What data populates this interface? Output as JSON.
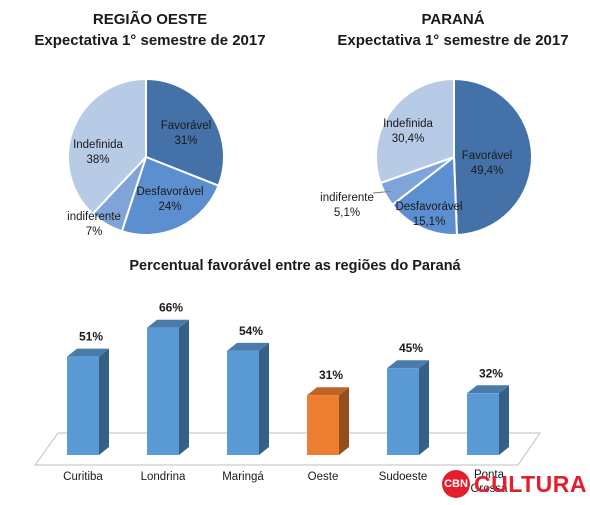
{
  "titles": {
    "left_line1": "REGIÃO OESTE",
    "left_line2": "Expectativa 1° semestre de 2017",
    "right_line1": "PARANÁ",
    "right_line2": "Expectativa 1° semestre de 2017",
    "bar_title": "Percentual favorável entre as regiões do Paraná"
  },
  "chart_data": [
    {
      "type": "pie",
      "title": "REGIÃO OESTE — Expectativa 1° semestre de 2017",
      "slices": [
        {
          "label": "Favorável",
          "value": 31,
          "display": "31%",
          "color": "#4472a8"
        },
        {
          "label": "Desfavorável",
          "value": 24,
          "display": "24%",
          "color": "#5b8fd0"
        },
        {
          "label": "indiferente",
          "value": 7,
          "display": "7%",
          "color": "#7ea4d9"
        },
        {
          "label": "Indefinida",
          "value": 38,
          "display": "38%",
          "color": "#b7cae6"
        }
      ]
    },
    {
      "type": "pie",
      "title": "PARANÁ — Expectativa 1° semestre de 2017",
      "slices": [
        {
          "label": "Favorável",
          "value": 49.4,
          "display": "49,4%",
          "color": "#4472a8"
        },
        {
          "label": "Desfavorável",
          "value": 15.1,
          "display": "15,1%",
          "color": "#5b8fd0"
        },
        {
          "label": "indiferente",
          "value": 5.1,
          "display": "5,1%",
          "color": "#7ea4d9"
        },
        {
          "label": "Indefinida",
          "value": 30.4,
          "display": "30,4%",
          "color": "#b7cae6"
        }
      ]
    },
    {
      "type": "bar",
      "title": "Percentual favorável entre as regiões do Paraná",
      "categories": [
        "Curitiba",
        "Londrina",
        "Maringá",
        "Oeste",
        "Sudoeste",
        "Ponta Grossa"
      ],
      "values": [
        51,
        66,
        54,
        31,
        45,
        32
      ],
      "labels": [
        "51%",
        "66%",
        "54%",
        "31%",
        "45%",
        "32%"
      ],
      "colors": [
        "#5b9bd5",
        "#5b9bd5",
        "#5b9bd5",
        "#ed7d31",
        "#5b9bd5",
        "#5b9bd5"
      ],
      "ylim": [
        0,
        70
      ]
    }
  ],
  "logo": {
    "mark": "CBN",
    "text": "CULTURA"
  }
}
